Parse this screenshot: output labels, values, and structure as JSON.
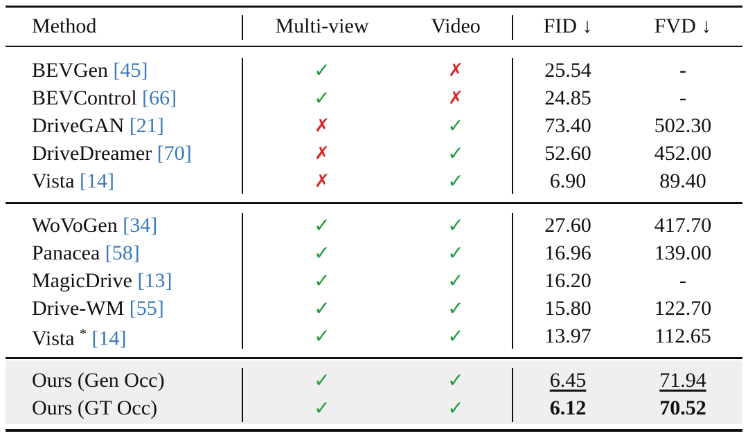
{
  "table": {
    "header": [
      "Method",
      "Multi-view",
      "Video",
      "FID ↓",
      "FVD ↓"
    ],
    "groups": [
      {
        "rows": [
          {
            "method": "BEVGen",
            "ref": "[45]",
            "multi_view": "✓",
            "video": "✗",
            "fid": "25.54",
            "fvd": "-"
          },
          {
            "method": "BEVControl",
            "ref": "[66]",
            "multi_view": "✓",
            "video": "✗",
            "fid": "24.85",
            "fvd": "-"
          },
          {
            "method": "DriveGAN",
            "ref": "[21]",
            "multi_view": "✗",
            "video": "✓",
            "fid": "73.40",
            "fvd": "502.30"
          },
          {
            "method": "DriveDreamer",
            "ref": "[70]",
            "multi_view": "✗",
            "video": "✓",
            "fid": "52.60",
            "fvd": "452.00"
          },
          {
            "method": "Vista",
            "ref": "[14]",
            "multi_view": "✗",
            "video": "✓",
            "fid": "6.90",
            "fvd": "89.40"
          }
        ]
      },
      {
        "rows": [
          {
            "method": "WoVoGen",
            "ref": "[34]",
            "multi_view": "✓",
            "video": "✓",
            "fid": "27.60",
            "fvd": "417.70"
          },
          {
            "method": "Panacea",
            "ref": "[58]",
            "multi_view": "✓",
            "video": "✓",
            "fid": "16.96",
            "fvd": "139.00"
          },
          {
            "method": "MagicDrive",
            "ref": "[13]",
            "multi_view": "✓",
            "video": "✓",
            "fid": "16.20",
            "fvd": "-"
          },
          {
            "method": "Drive-WM",
            "ref": "[55]",
            "multi_view": "✓",
            "video": "✓",
            "fid": "15.80",
            "fvd": "122.70"
          },
          {
            "method": "Vista",
            "mark": "*",
            "ref": "[14]",
            "multi_view": "✓",
            "video": "✓",
            "fid": "13.97",
            "fvd": "112.65"
          }
        ]
      },
      {
        "rows": [
          {
            "method": "Ours (Gen Occ)",
            "multi_view": "✓",
            "video": "✓",
            "fid": "6.45",
            "fvd": "71.94"
          },
          {
            "method": "Ours (GT Occ)",
            "multi_view": "✓",
            "video": "✓",
            "fid": "6.12",
            "fvd": "70.52"
          }
        ]
      }
    ]
  }
}
